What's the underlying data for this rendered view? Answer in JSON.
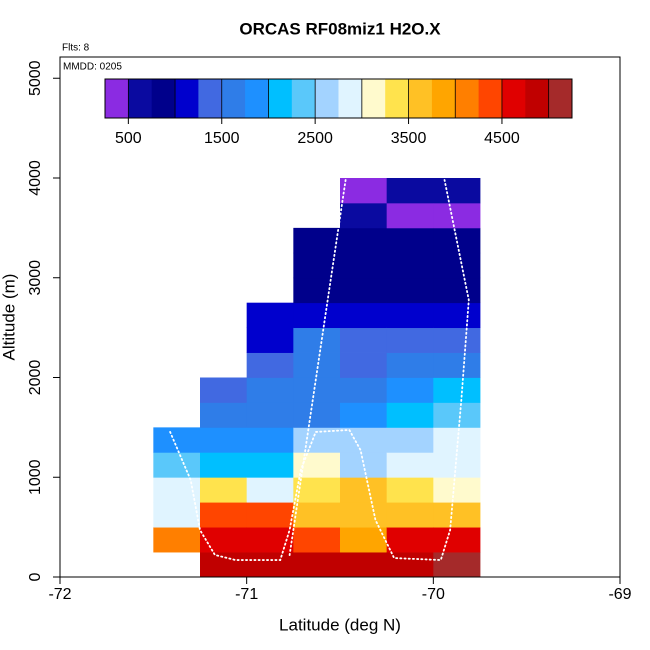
{
  "chart_data": {
    "type": "heatmap",
    "title": "ORCAS RF08miz1 H2O.X",
    "note_flights": "Flts: 8",
    "note_date": "MMDD: 0205",
    "x_label": "Latitude (deg N)",
    "y_label": "Altitude (m)",
    "xlim": [
      -72,
      -69
    ],
    "xticks": [
      -72,
      -71,
      -70,
      -69
    ],
    "ylim": [
      0,
      5213
    ],
    "yticks": [
      0,
      1000,
      2000,
      3000,
      4000,
      5000
    ],
    "lat_bins": [
      -71.5,
      -71.25,
      -71.0,
      -70.75,
      -70.5,
      -70.25,
      -70.0,
      -69.75
    ],
    "alt_bins": [
      0,
      250,
      500,
      750,
      1000,
      1250,
      1500,
      1750,
      2000,
      2250,
      2500,
      2750,
      3000,
      3250,
      3500,
      3750,
      4000
    ],
    "values": [
      [
        null,
        4100,
        2900,
        2800,
        2300,
        1800,
        null,
        null,
        null,
        null,
        null,
        null,
        null,
        null,
        null,
        null
      ],
      [
        4900,
        4600,
        4300,
        3300,
        2100,
        1800,
        1600,
        1300,
        null,
        null,
        null,
        null,
        null,
        null,
        null,
        null
      ],
      [
        4900,
        4600,
        4300,
        2900,
        2100,
        1800,
        1700,
        1600,
        1300,
        1100,
        1050,
        null,
        null,
        null,
        null,
        null
      ],
      [
        4900,
        4300,
        3700,
        3300,
        3000,
        2600,
        1600,
        1600,
        1500,
        1500,
        1000,
        800,
        800,
        800,
        null,
        null
      ],
      [
        4900,
        3900,
        3700,
        3600,
        2700,
        2500,
        1800,
        1600,
        1400,
        1300,
        1000,
        800,
        800,
        800,
        600,
        450
      ],
      [
        4900,
        4600,
        3700,
        3250,
        2800,
        2700,
        2100,
        1800,
        1500,
        1300,
        1100,
        800,
        750,
        800,
        450,
        550
      ],
      [
        5100,
        4700,
        3600,
        3000,
        2900,
        2750,
        2300,
        2000,
        1700,
        1300,
        1100,
        900,
        800,
        800,
        300,
        550
      ]
    ],
    "colorscale": {
      "zlim": [
        250,
        5250
      ],
      "colors": [
        "#8b2be2",
        "#0a0aa0",
        "#00008b",
        "#0000cd",
        "#4169e1",
        "#2f7de8",
        "#1e90ff",
        "#00bfff",
        "#5ac8fa",
        "#a3d3ff",
        "#e0f4ff",
        "#fffacd",
        "#ffe34d",
        "#ffc125",
        "#ffa500",
        "#ff7f00",
        "#ff4500",
        "#e00000",
        "#c00000",
        "#a52a2a"
      ],
      "ticks": [
        500,
        1500,
        2500,
        3500,
        4500
      ]
    },
    "track": {
      "color": "#ffffff",
      "x": [
        -71.41,
        -71.3,
        -71.25,
        -71.17,
        -71.06,
        -70.82,
        -70.77,
        -70.71,
        -70.63,
        -70.45,
        -70.39,
        -70.31,
        -70.21,
        -69.96,
        -69.91,
        -69.85,
        -69.81,
        -69.94,
        null,
        -70.77,
        -70.47
      ],
      "y": [
        1454,
        972,
        471,
        221,
        170,
        170,
        471,
        1073,
        1454,
        1474,
        1273,
        571,
        190,
        170,
        471,
        1774,
        2777,
        3980,
        null,
        220,
        3980
      ]
    }
  }
}
